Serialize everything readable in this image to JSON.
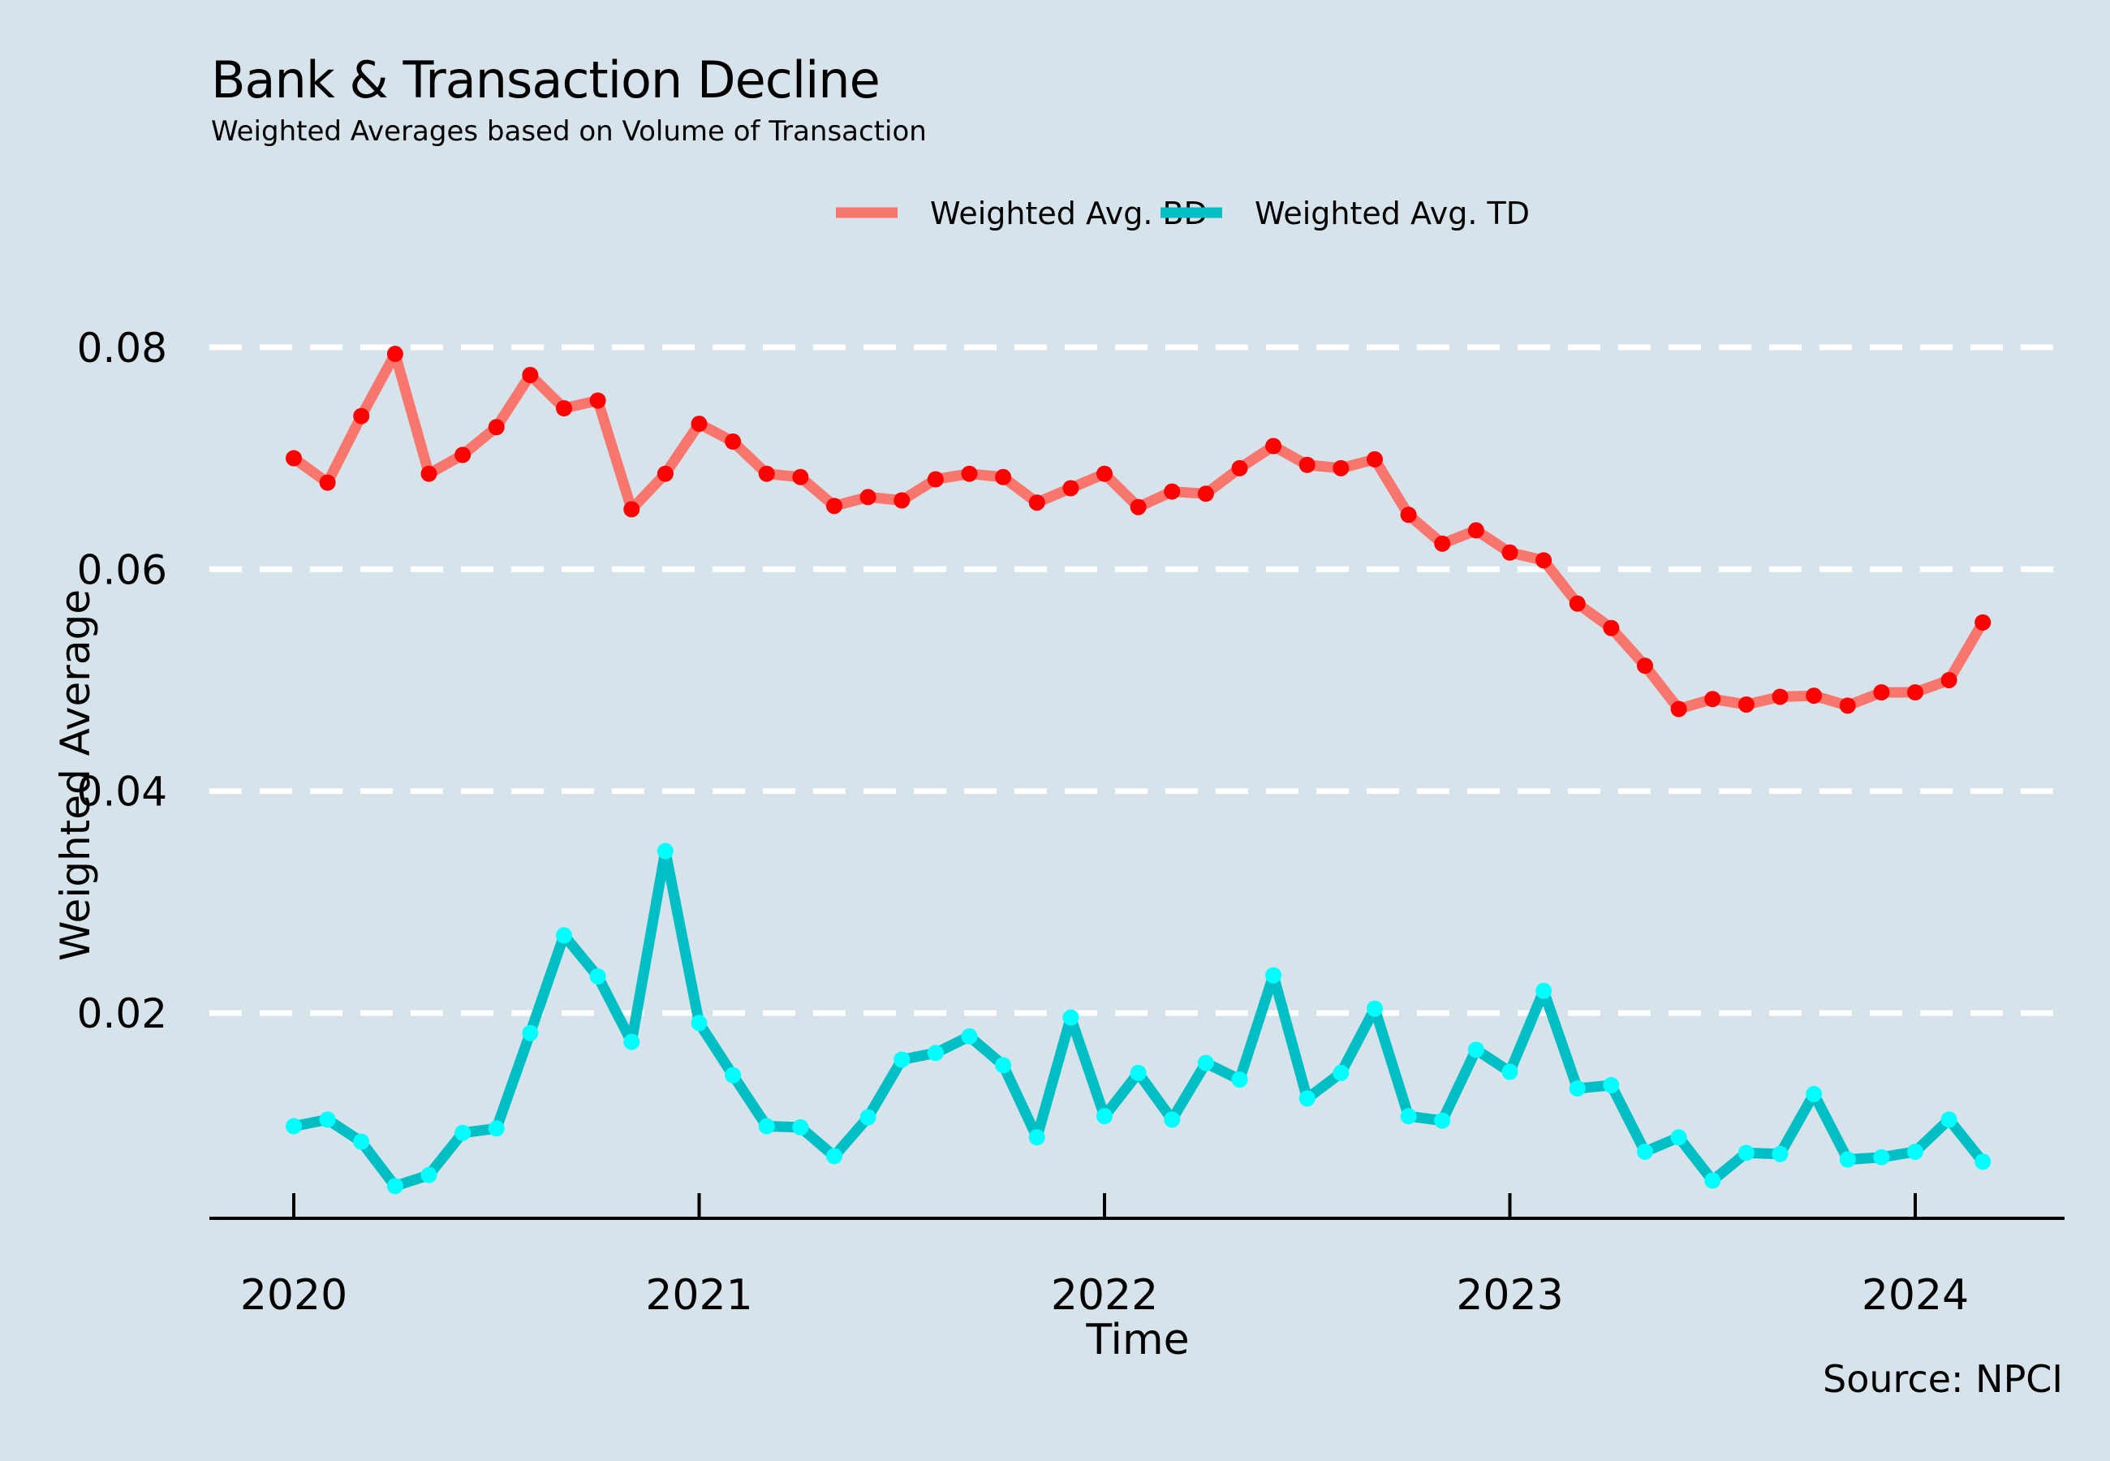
{
  "title": "Bank & Transaction Decline",
  "subtitle": "Weighted Averages based on Volume of Transaction",
  "caption": "Source: NPCI",
  "colors": {
    "background": "#d6e3eb",
    "bd_line": "#f8766d",
    "bd_point": "#ff0000",
    "td_line": "#00bfc4",
    "td_point": "#00ffff",
    "grid": "#ffffff"
  },
  "chart_data": {
    "type": "line",
    "xlabel": "Time",
    "ylabel": "Weighted Average",
    "x_ticks": [
      "2020",
      "2021",
      "2022",
      "2023",
      "2024"
    ],
    "y_ticks": [
      "0.02",
      "0.04",
      "0.06",
      "0.08"
    ],
    "ylim": [
      0.0015,
      0.0835
    ],
    "grid": "horizontal dashed",
    "legend_position": "top",
    "x": [
      "2020-01",
      "2020-02",
      "2020-03",
      "2020-04",
      "2020-05",
      "2020-06",
      "2020-07",
      "2020-08",
      "2020-09",
      "2020-10",
      "2020-11",
      "2020-12",
      "2021-01",
      "2021-02",
      "2021-03",
      "2021-04",
      "2021-05",
      "2021-06",
      "2021-07",
      "2021-08",
      "2021-09",
      "2021-10",
      "2021-11",
      "2021-12",
      "2022-01",
      "2022-02",
      "2022-03",
      "2022-04",
      "2022-05",
      "2022-06",
      "2022-07",
      "2022-08",
      "2022-09",
      "2022-10",
      "2022-11",
      "2022-12",
      "2023-01",
      "2023-02",
      "2023-03",
      "2023-04",
      "2023-05",
      "2023-06",
      "2023-07",
      "2023-08",
      "2023-09",
      "2023-10",
      "2023-11",
      "2023-12",
      "2024-01",
      "2024-02",
      "2024-03"
    ],
    "series": [
      {
        "name": "Weighted Avg. BD",
        "values": [
          0.07,
          0.0678,
          0.0738,
          0.0794,
          0.0686,
          0.0703,
          0.0728,
          0.0775,
          0.0745,
          0.0752,
          0.0654,
          0.0686,
          0.0731,
          0.0715,
          0.0686,
          0.0683,
          0.0657,
          0.0665,
          0.0662,
          0.0681,
          0.0686,
          0.0683,
          0.066,
          0.0673,
          0.0686,
          0.0656,
          0.067,
          0.0668,
          0.0691,
          0.0711,
          0.0694,
          0.0691,
          0.0699,
          0.0649,
          0.0623,
          0.0635,
          0.0615,
          0.0608,
          0.0569,
          0.0547,
          0.0513,
          0.0474,
          0.0483,
          0.0478,
          0.0485,
          0.0486,
          0.0477,
          0.0489,
          0.0489,
          0.05,
          0.0552
        ]
      },
      {
        "name": "Weighted Avg. TD",
        "values": [
          0.0098,
          0.0104,
          0.0084,
          0.0044,
          0.0054,
          0.0092,
          0.0096,
          0.0182,
          0.027,
          0.0233,
          0.0174,
          0.0346,
          0.0191,
          0.0144,
          0.0098,
          0.0097,
          0.0071,
          0.0106,
          0.0158,
          0.0164,
          0.0179,
          0.0153,
          0.0088,
          0.0196,
          0.0107,
          0.0146,
          0.0104,
          0.0155,
          0.014,
          0.0234,
          0.0123,
          0.0146,
          0.0204,
          0.0107,
          0.0103,
          0.0167,
          0.0147,
          0.022,
          0.0132,
          0.0135,
          0.0075,
          0.0088,
          0.0049,
          0.0074,
          0.0073,
          0.0127,
          0.0068,
          0.007,
          0.0075,
          0.0104,
          0.0066
        ]
      }
    ]
  }
}
